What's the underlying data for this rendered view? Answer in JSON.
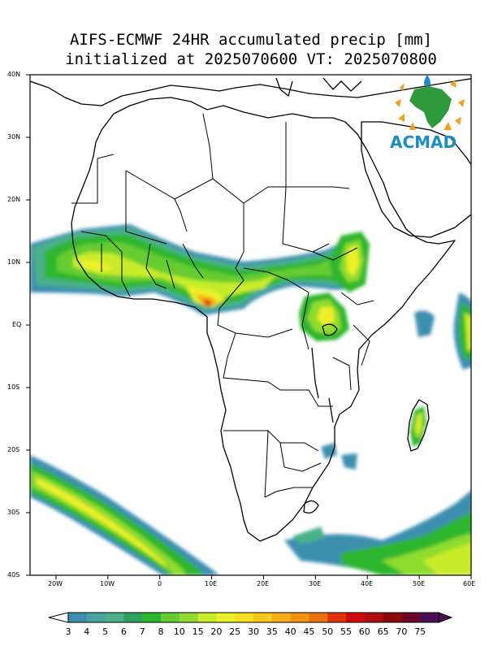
{
  "title": {
    "line1": "AIFS-ECMWF 24HR accumulated precip [mm]",
    "line2": "initialized at 2025070600 VT: 2025070800"
  },
  "axes": {
    "lat_labels": [
      "40N",
      "30N",
      "20N",
      "10N",
      "EQ",
      "10S",
      "20S",
      "30S",
      "40S"
    ],
    "lon_labels": [
      "20W",
      "10W",
      "0",
      "10E",
      "20E",
      "30E",
      "40E",
      "50E",
      "60E"
    ],
    "lat_range": [
      -40,
      40
    ],
    "lon_range": [
      -25,
      60
    ]
  },
  "logo": {
    "text": "ACMAD",
    "color": "#1a8cc6"
  },
  "colorbar": {
    "labels": [
      "3",
      "4",
      "5",
      "6",
      "7",
      "8",
      "10",
      "15",
      "20",
      "25",
      "30",
      "35",
      "40",
      "45",
      "50",
      "55",
      "60",
      "65",
      "70",
      "75"
    ],
    "colors": [
      "#3d8fb0",
      "#4aa3a3",
      "#4ab08a",
      "#2fa05a",
      "#2eb62e",
      "#66cc33",
      "#8fdc2e",
      "#c8ec2a",
      "#ecf02a",
      "#f7df1f",
      "#f7c81b",
      "#f6ae17",
      "#f29313",
      "#ed6f10",
      "#e3300c",
      "#cf0b0b",
      "#b10f0f",
      "#8c0a0a",
      "#6d0727",
      "#4c0d55"
    ]
  }
}
